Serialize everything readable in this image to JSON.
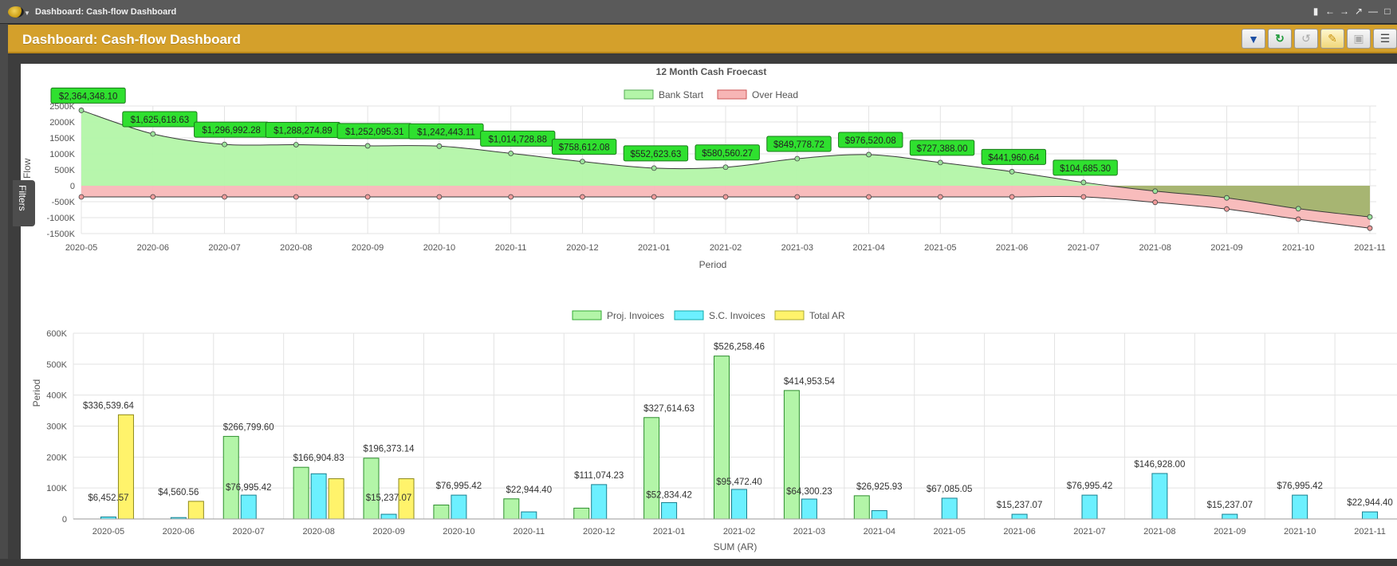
{
  "window": {
    "title": "Dashboard: Cash-flow Dashboard"
  },
  "header": {
    "title": "Dashboard: Cash-flow Dashboard"
  },
  "toolbar": {
    "icons": [
      "filter-icon",
      "refresh-icon",
      "undo-icon",
      "edit-icon",
      "save-icon",
      "menu-icon"
    ]
  },
  "filters_tab": {
    "label": "Filters"
  },
  "colors": {
    "header": "#d4a02b",
    "bank_start": "#b3f5a8",
    "over_head": "#f7b5b5",
    "proj_invoices": "#b3f5a8",
    "sc_invoices": "#6cf0ff",
    "total_ar": "#fff36b",
    "label_bg": "#2fe02f",
    "overlap": "#9fb56a"
  },
  "chart_data": [
    {
      "type": "area",
      "title": "12 Month Cash Froecast",
      "xlabel": "Period",
      "ylabel": "Cash Flow",
      "categories": [
        "2020-05",
        "2020-06",
        "2020-07",
        "2020-08",
        "2020-09",
        "2020-10",
        "2020-11",
        "2020-12",
        "2021-01",
        "2021-02",
        "2021-03",
        "2021-04",
        "2021-05",
        "2021-06",
        "2021-07",
        "2021-08",
        "2021-09",
        "2021-10",
        "2021-11"
      ],
      "ylim": [
        -1500000,
        2500000
      ],
      "yticks": [
        2500000,
        2000000,
        1500000,
        1000000,
        500000,
        0,
        -500000,
        -1000000,
        -1500000
      ],
      "ytick_labels": [
        "2500K",
        "2000K",
        "1500K",
        "1000K",
        "500K",
        "0",
        "-500K",
        "-1000K",
        "-1500K"
      ],
      "grid": true,
      "legend": "top-center",
      "series": [
        {
          "name": "Bank Start",
          "values": [
            2364348.1,
            1625618.63,
            1296992.28,
            1288274.89,
            1252095.31,
            1242443.11,
            1014728.88,
            758612.08,
            552623.63,
            580560.27,
            849778.72,
            976520.08,
            727388.0,
            441960.64,
            104685.3,
            -170000,
            -380000,
            -720000,
            -980000
          ]
        },
        {
          "name": "Over Head",
          "values": [
            -350000,
            -350000,
            -350000,
            -350000,
            -350000,
            -350000,
            -350000,
            -350000,
            -350000,
            -350000,
            -350000,
            -350000,
            -350000,
            -350000,
            -350000,
            -520000,
            -730000,
            -1050000,
            -1330000
          ]
        }
      ],
      "data_labels": [
        "$2,364,348.10",
        "$1,625,618.63",
        "$1,296,992.28",
        "$1,288,274.89",
        "$1,252,095.31",
        "$1,242,443.11",
        "$1,014,728.88",
        "$758,612.08",
        "$552,623.63",
        "$580,560.27",
        "$849,778.72",
        "$976,520.08",
        "$727,388.00",
        "$441,960.64",
        "$104,685.30"
      ]
    },
    {
      "type": "bar",
      "title": "",
      "xlabel": "SUM (AR)",
      "ylabel": "Period",
      "categories": [
        "2020-05",
        "2020-06",
        "2020-07",
        "2020-08",
        "2020-09",
        "2020-10",
        "2020-11",
        "2020-12",
        "2021-01",
        "2021-02",
        "2021-03",
        "2021-04",
        "2021-05",
        "2021-06",
        "2021-07",
        "2021-08",
        "2021-09",
        "2021-10",
        "2021-11"
      ],
      "ylim": [
        0,
        600000
      ],
      "yticks": [
        0,
        100000,
        200000,
        300000,
        400000,
        500000,
        600000
      ],
      "ytick_labels": [
        "0",
        "100K",
        "200K",
        "300K",
        "400K",
        "500K",
        "600K"
      ],
      "grid": true,
      "legend": "top-center",
      "series": [
        {
          "name": "Proj. Invoices",
          "values": [
            0,
            0,
            266799.6,
            166904.83,
            196373.14,
            45000,
            65000,
            35000,
            327614.63,
            526258.46,
            414953.54,
            75000,
            0,
            0,
            0,
            0,
            0,
            0,
            0
          ]
        },
        {
          "name": "S.C. Invoices",
          "values": [
            6452.57,
            4560.56,
            76995.42,
            146000,
            15237.07,
            76995.42,
            22944.4,
            111074.23,
            52834.42,
            95472.4,
            64300.23,
            26925.93,
            67085.05,
            15237.07,
            76995.42,
            146928.0,
            15237.07,
            76995.42,
            22944.4
          ]
        },
        {
          "name": "Total AR",
          "values": [
            336539.64,
            57000,
            0,
            130000,
            130000,
            0,
            0,
            0,
            0,
            0,
            0,
            0,
            0,
            0,
            0,
            0,
            0,
            0,
            0
          ]
        }
      ],
      "data_labels": [
        "$336,539.64",
        "$4,560.56",
        "$266,799.60",
        "$166,904.83",
        "$196,373.14",
        "$76,995.42",
        "$22,944.40",
        "$111,074.23",
        "$327,614.63",
        "$526,258.46",
        "$414,953.54",
        "$26,925.93",
        "$67,085.05",
        "$15,237.07",
        "$76,995.42",
        "$146,928.00",
        "$15,237.07",
        "$76,995.42",
        "$22,944.40"
      ],
      "secondary_labels": [
        "$6,452.57",
        "",
        "$76,995.42",
        "",
        "$15,237.07",
        "",
        "",
        "",
        "$52,834.42",
        "$95,472.40",
        "$64,300.23",
        "",
        "",
        "",
        "",
        "",
        "",
        "",
        ""
      ]
    }
  ]
}
